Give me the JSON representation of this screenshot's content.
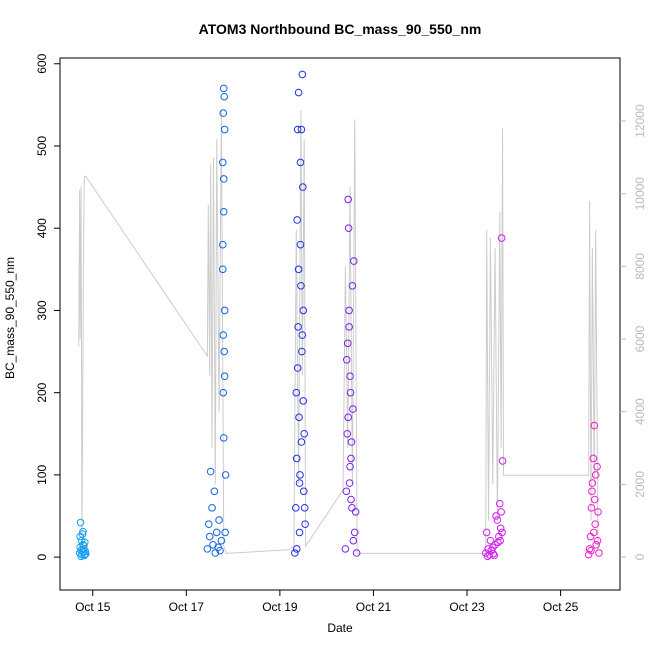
{
  "chart_data": {
    "type": "scatter",
    "title": "ATOM3 Northbound BC_mass_90_550_nm",
    "x_label": "Date",
    "y_label": "BC_mass_90_550_nm",
    "xlim": [
      14.3,
      26.27
    ],
    "xticks": [
      {
        "value": 15,
        "label": "Oct 15"
      },
      {
        "value": 17,
        "label": "Oct 17"
      },
      {
        "value": 19,
        "label": "Oct 19"
      },
      {
        "value": 21,
        "label": "Oct 21"
      },
      {
        "value": 23,
        "label": "Oct 23"
      },
      {
        "value": 25,
        "label": "Oct 25"
      }
    ],
    "ylim": [
      -40,
      607
    ],
    "yticks": [
      0,
      100,
      200,
      300,
      400,
      500,
      600
    ],
    "y2lim": [
      -908,
      13735
    ],
    "y2ticks": [
      0,
      2000,
      4000,
      6000,
      8000,
      10000,
      12000
    ],
    "y2_color": "#bbbbbb",
    "series": [
      {
        "type": "line",
        "axis": "y2",
        "color": "#cccccc",
        "x": [
          14.7,
          14.72,
          14.73,
          14.75,
          14.77,
          14.8,
          14.82,
          14.85,
          17.45,
          17.47,
          17.5,
          17.52,
          17.55,
          17.58,
          17.62,
          17.65,
          17.7,
          17.75,
          17.8,
          17.85,
          19.2,
          19.3,
          19.35,
          19.4,
          19.45,
          19.48,
          19.52,
          19.55,
          20.35,
          20.4,
          20.45,
          20.5,
          20.55,
          20.6,
          20.65,
          23.4,
          23.42,
          23.46,
          23.5,
          23.55,
          23.6,
          23.65,
          23.7,
          23.73,
          23.76,
          23.78,
          25.6,
          25.62,
          25.65,
          25.68,
          25.72,
          25.75,
          25.8
        ],
        "values": [
          5800,
          10100,
          6000,
          10200,
          400,
          8000,
          10480,
          10480,
          5530,
          9700,
          5000,
          10800,
          3000,
          11000,
          2000,
          11500,
          4000,
          12300,
          300,
          100,
          200,
          300,
          9000,
          2000,
          12300,
          5000,
          11500,
          300,
          1840,
          8000,
          3000,
          10200,
          2000,
          12050,
          100,
          100,
          9000,
          1000,
          8800,
          2000,
          8500,
          1000,
          9500,
          3000,
          11800,
          2250,
          2250,
          9800,
          1000,
          8500,
          2000,
          9000,
          200
        ]
      },
      {
        "type": "scatter",
        "color": "#1aa0f0",
        "x": [
          14.72,
          14.73,
          14.74,
          14.75,
          14.76,
          14.77,
          14.78,
          14.79,
          14.8,
          14.81,
          14.82,
          14.83,
          14.84,
          14.85,
          14.73,
          14.75,
          14.77,
          14.79,
          14.81,
          14.83
        ],
        "values": [
          5,
          12,
          42,
          8,
          20,
          3,
          28,
          15,
          6,
          10,
          2,
          18,
          7,
          4,
          25,
          1,
          9,
          31,
          14,
          3
        ]
      },
      {
        "type": "scatter",
        "color": "#1565e0",
        "x": [
          17.45,
          17.48,
          17.5,
          17.52,
          17.55,
          17.57,
          17.6,
          17.62,
          17.65,
          17.68,
          17.7,
          17.72,
          17.75,
          17.78,
          17.8,
          17.82,
          17.84,
          17.78,
          17.79,
          17.8,
          17.81,
          17.82,
          17.79,
          17.8,
          17.81,
          17.78,
          17.83,
          17.8,
          17.79,
          17.82
        ],
        "values": [
          10,
          40,
          25,
          104,
          60,
          15,
          80,
          5,
          30,
          12,
          45,
          8,
          20,
          350,
          570,
          520,
          100,
          480,
          540,
          420,
          250,
          300,
          200,
          145,
          560,
          380,
          30,
          460,
          270,
          220
        ]
      },
      {
        "type": "scatter",
        "color": "#2233e0",
        "x": [
          19.32,
          19.34,
          19.36,
          19.38,
          19.4,
          19.42,
          19.44,
          19.46,
          19.48,
          19.5,
          19.52,
          19.54,
          19.35,
          19.37,
          19.39,
          19.41,
          19.43,
          19.45,
          19.47,
          19.49,
          19.51,
          19.4,
          19.44,
          19.48,
          19.46,
          19.42,
          19.38,
          19.5,
          19.36,
          19.53
        ],
        "values": [
          5,
          60,
          120,
          230,
          350,
          90,
          480,
          520,
          587,
          300,
          150,
          40,
          200,
          410,
          280,
          170,
          100,
          330,
          250,
          450,
          80,
          565,
          380,
          270,
          140,
          30,
          520,
          190,
          10,
          60
        ]
      },
      {
        "type": "scatter",
        "color": "#7b22e8",
        "x": [
          20.4,
          20.42,
          20.44,
          20.46,
          20.48,
          20.5,
          20.52,
          20.54,
          20.56,
          20.58,
          20.6,
          20.62,
          20.45,
          20.47,
          20.49,
          20.51,
          20.53,
          20.55,
          20.57,
          20.43,
          20.5,
          20.46,
          20.52,
          20.48,
          20.64
        ],
        "values": [
          10,
          80,
          150,
          435,
          300,
          220,
          120,
          60,
          180,
          360,
          30,
          55,
          260,
          400,
          90,
          200,
          140,
          330,
          20,
          240,
          110,
          170,
          70,
          280,
          5
        ]
      },
      {
        "type": "scatter",
        "color": "#d01ef0",
        "x": [
          23.4,
          23.42,
          23.45,
          23.48,
          23.5,
          23.52,
          23.55,
          23.58,
          23.6,
          23.62,
          23.65,
          23.68,
          23.7,
          23.72,
          23.74,
          23.76,
          23.75,
          23.73,
          23.71,
          23.44,
          23.56,
          23.66
        ],
        "values": [
          5,
          30,
          10,
          3,
          20,
          8,
          12,
          2,
          15,
          50,
          45,
          25,
          65,
          35,
          388,
          117,
          30,
          55,
          20,
          1,
          4,
          18
        ]
      },
      {
        "type": "scatter",
        "color": "#f01ec8",
        "x": [
          25.6,
          25.62,
          25.64,
          25.66,
          25.68,
          25.7,
          25.72,
          25.74,
          25.76,
          25.78,
          25.8,
          25.82,
          25.67,
          25.71,
          25.75,
          25.79,
          25.65,
          25.73
        ],
        "values": [
          3,
          10,
          25,
          60,
          90,
          120,
          160,
          40,
          15,
          110,
          55,
          5,
          80,
          30,
          100,
          20,
          8,
          70
        ]
      }
    ]
  }
}
